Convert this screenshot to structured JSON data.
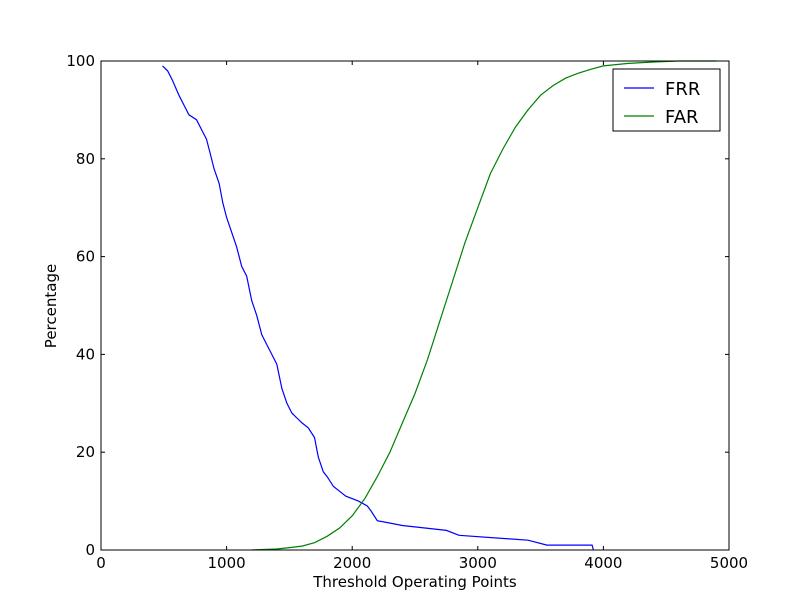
{
  "chart_data": {
    "type": "line",
    "x_label": "Threshold Operating Points",
    "y_label": "Percentage",
    "xlim": [
      0,
      5000
    ],
    "ylim": [
      0,
      100
    ],
    "xticks": [
      0,
      1000,
      2000,
      3000,
      4000,
      5000
    ],
    "yticks": [
      0,
      20,
      40,
      60,
      80,
      100
    ],
    "legend": "upper right",
    "series": [
      {
        "name": "FRR",
        "color": "#0000ff",
        "x": [
          490,
          530,
          570,
          620,
          660,
          700,
          760,
          800,
          840,
          870,
          900,
          940,
          970,
          1000,
          1040,
          1080,
          1120,
          1160,
          1200,
          1240,
          1280,
          1320,
          1360,
          1400,
          1440,
          1480,
          1520,
          1560,
          1600,
          1650,
          1700,
          1730,
          1770,
          1800,
          1850,
          1900,
          1950,
          2050,
          2120,
          2150,
          2200,
          2400,
          2750,
          2850,
          3400,
          3550,
          3910,
          3920
        ],
        "values": [
          99,
          98,
          96,
          93,
          91,
          89,
          88,
          86,
          84,
          81,
          78,
          75,
          71,
          68,
          65,
          62,
          58,
          56,
          51,
          48,
          44,
          42,
          40,
          38,
          33,
          30,
          28,
          27,
          26,
          25,
          23,
          19,
          16,
          15,
          13,
          12,
          11,
          10,
          9,
          8,
          6,
          5,
          4,
          3,
          2,
          1,
          1,
          0
        ]
      },
      {
        "name": "FAR",
        "color": "#008000",
        "x": [
          1200,
          1400,
          1500,
          1600,
          1700,
          1800,
          1900,
          2000,
          2100,
          2200,
          2300,
          2400,
          2500,
          2600,
          2700,
          2800,
          2900,
          3000,
          3100,
          3200,
          3300,
          3400,
          3500,
          3600,
          3700,
          3800,
          3900,
          4000,
          4200,
          4400,
          4600,
          4900
        ],
        "values": [
          0,
          0.2,
          0.5,
          0.8,
          1.5,
          2.8,
          4.5,
          7,
          10.5,
          15,
          20,
          26,
          32,
          39,
          47,
          55,
          63,
          70,
          77,
          82,
          86.5,
          90,
          93,
          95,
          96.5,
          97.5,
          98.3,
          99,
          99.5,
          99.8,
          100,
          100
        ]
      }
    ]
  }
}
